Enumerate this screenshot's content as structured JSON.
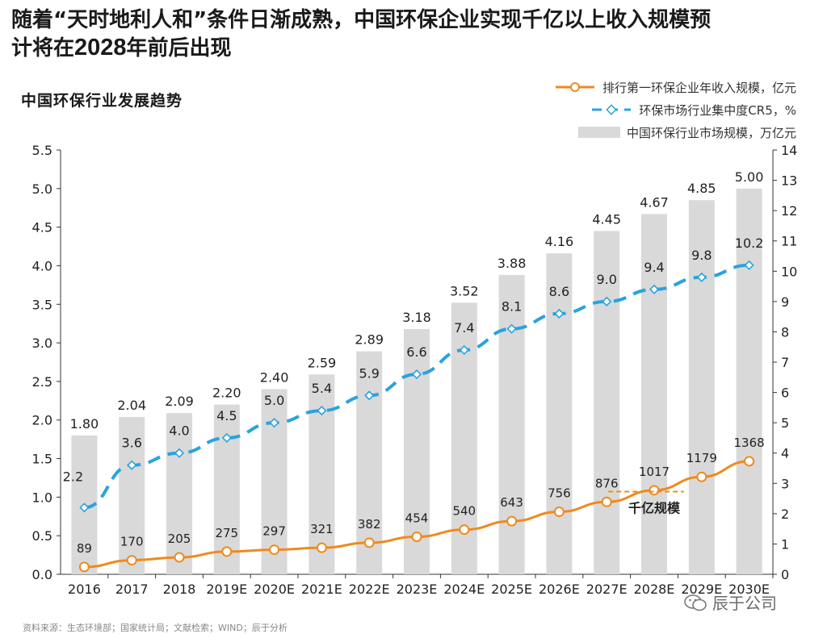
{
  "headline": {
    "line1": "随着“天时地利人和”条件日渐成熟，中国环保企业实现千亿以上收入规模预",
    "line2_pre": "计将在",
    "line2_year": "2028",
    "line2_post": "年前后出现"
  },
  "source": "资料来源：生态环境部；国家统计局；文献检索；WIND；辰于分析",
  "watermark": "辰于公司",
  "colors": {
    "bar": "#d9d9d9",
    "revenue": "#f08a1c",
    "cr5": "#29a3dc",
    "annotation": "#f08a1c"
  },
  "chart_data": {
    "type": "bar",
    "title": "中国环保行业发展趋势",
    "categories": [
      "2016",
      "2017",
      "2018",
      "2019E",
      "2020E",
      "2021E",
      "2022E",
      "2023E",
      "2024E",
      "2025E",
      "2026E",
      "2027E",
      "2028E",
      "2029E",
      "2030E"
    ],
    "series": [
      {
        "name": "中国环保行业市场规模，万亿元",
        "type": "bar",
        "axis": "left",
        "values": [
          1.8,
          2.04,
          2.09,
          2.2,
          2.4,
          2.59,
          2.89,
          3.18,
          3.52,
          3.88,
          4.16,
          4.45,
          4.67,
          4.85,
          5.0
        ],
        "labels": [
          "1.80",
          "2.04",
          "2.09",
          "2.20",
          "2.40",
          "2.59",
          "2.89",
          "3.18",
          "3.52",
          "3.88",
          "4.16",
          "4.45",
          "4.67",
          "4.85",
          "5.00"
        ]
      },
      {
        "name": "环保市场行业集中度CR5，%",
        "type": "line",
        "axis": "right",
        "style": "dashed",
        "values": [
          2.2,
          3.6,
          4.0,
          4.5,
          5.0,
          5.4,
          5.9,
          6.6,
          7.4,
          8.1,
          8.6,
          9.0,
          9.4,
          9.8,
          10.2
        ],
        "labels": [
          "2.2",
          "3.6",
          "4.0",
          "4.5",
          "5.0",
          "5.4",
          "5.9",
          "6.6",
          "7.4",
          "8.1",
          "8.6",
          "9.0",
          "9.4",
          "9.8",
          "10.2"
        ]
      },
      {
        "name": "排行第一环保企业年收入规模，亿元",
        "type": "line",
        "axis": "right",
        "style": "solid",
        "values": [
          89,
          170,
          205,
          275,
          297,
          321,
          382,
          454,
          540,
          643,
          756,
          876,
          1017,
          1179,
          1368
        ],
        "labels": [
          "89",
          "170",
          "205",
          "275",
          "297",
          "321",
          "382",
          "454",
          "540",
          "643",
          "756",
          "876",
          "1017",
          "1179",
          "1368"
        ]
      }
    ],
    "y_left": {
      "lim": [
        0,
        5.5
      ],
      "ticks": [
        "0.0",
        "0.5",
        "1.0",
        "1.5",
        "2.0",
        "2.5",
        "3.0",
        "3.5",
        "4.0",
        "4.5",
        "5.0",
        "5.5"
      ]
    },
    "y_right": {
      "lim": [
        0,
        14
      ],
      "ticks": [
        "0",
        "1",
        "2",
        "3",
        "4",
        "5",
        "6",
        "7",
        "8",
        "9",
        "10",
        "11",
        "12",
        "13",
        "14"
      ]
    },
    "annotation": {
      "text": "千亿规模",
      "at_value": 1000
    },
    "legend_position": "top-right",
    "grid": false
  }
}
